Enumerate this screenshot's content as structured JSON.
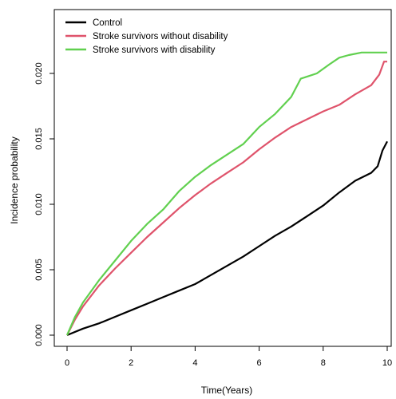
{
  "chart_data": {
    "type": "line",
    "title": "",
    "xlabel": "Time(Years)",
    "ylabel": "Incidence probability",
    "xlim": [
      0,
      10
    ],
    "ylim": [
      0,
      0.0215
    ],
    "xticks": [
      0,
      2,
      4,
      6,
      8,
      10
    ],
    "yticks": [
      0.0,
      0.005,
      0.01,
      0.015,
      0.02
    ],
    "xtick_labels": [
      "0",
      "2",
      "4",
      "6",
      "8",
      "10"
    ],
    "ytick_labels": [
      "0.000",
      "0.005",
      "0.010",
      "0.015",
      "0.020"
    ],
    "grid": false,
    "legend_position": "top-left",
    "series": [
      {
        "name": "Control",
        "color": "#000000",
        "x": [
          0,
          0.5,
          1,
          1.5,
          2,
          2.5,
          3,
          3.5,
          4,
          4.5,
          5,
          5.5,
          6,
          6.5,
          7,
          7.5,
          8,
          8.5,
          9,
          9.5,
          9.7,
          9.85,
          10
        ],
        "y": [
          0,
          0.0005,
          0.0009,
          0.0014,
          0.0019,
          0.0024,
          0.0029,
          0.0034,
          0.0039,
          0.0046,
          0.0053,
          0.006,
          0.0068,
          0.0076,
          0.0083,
          0.0091,
          0.0099,
          0.0109,
          0.0118,
          0.0124,
          0.0129,
          0.0141,
          0.0148
        ]
      },
      {
        "name": "Stroke survivors without disability",
        "color": "#df536b",
        "x": [
          0,
          0.25,
          0.5,
          1,
          1.5,
          2,
          2.5,
          3,
          3.5,
          4,
          4.5,
          5,
          5.5,
          6,
          6.5,
          7,
          7.5,
          8,
          8.5,
          9,
          9.5,
          9.75,
          9.9,
          10
        ],
        "y": [
          0,
          0.0012,
          0.0022,
          0.0038,
          0.0051,
          0.0063,
          0.0075,
          0.0086,
          0.0097,
          0.0107,
          0.0116,
          0.0124,
          0.0132,
          0.0142,
          0.0151,
          0.0159,
          0.0165,
          0.0171,
          0.0176,
          0.0184,
          0.0191,
          0.0199,
          0.0209,
          0.0209
        ]
      },
      {
        "name": "Stroke survivors with disability",
        "color": "#61d04f",
        "x": [
          0,
          0.25,
          0.5,
          1,
          1.5,
          2,
          2.5,
          3,
          3.5,
          4,
          4.5,
          5,
          5.5,
          6,
          6.5,
          7,
          7.3,
          7.8,
          8.2,
          8.5,
          8.8,
          9.2,
          10
        ],
        "y": [
          0,
          0.0014,
          0.0025,
          0.0042,
          0.0057,
          0.0072,
          0.0085,
          0.0096,
          0.011,
          0.0121,
          0.013,
          0.0138,
          0.0146,
          0.0159,
          0.0169,
          0.0182,
          0.0196,
          0.02,
          0.0207,
          0.0212,
          0.0214,
          0.0216,
          0.0216
        ]
      }
    ]
  }
}
